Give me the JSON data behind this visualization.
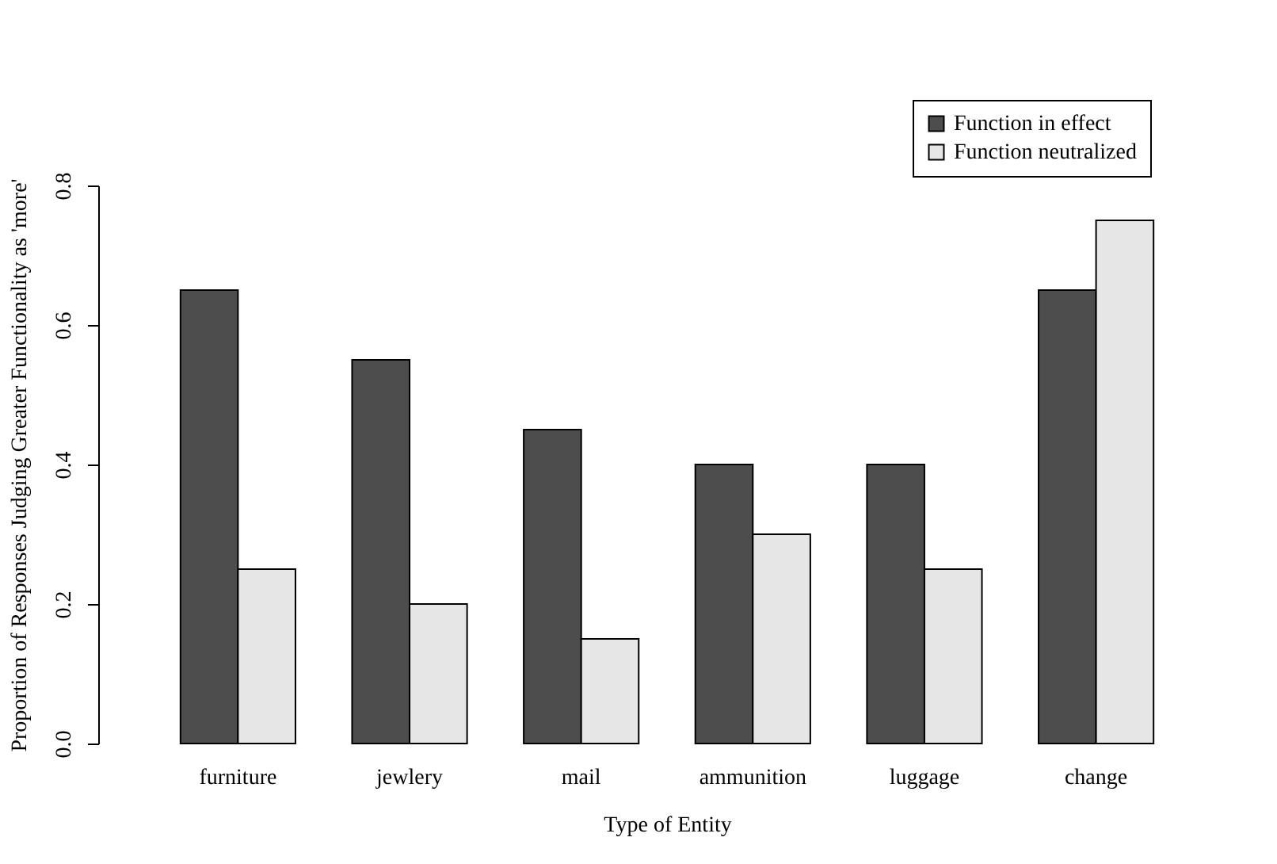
{
  "chart_data": {
    "type": "bar",
    "xlabel": "Type of Entity",
    "ylabel": "Proportion of Responses Judging Greater Functionality as 'more'",
    "categories": [
      "furniture",
      "jewlery",
      "mail",
      "ammunition",
      "luggage",
      "change"
    ],
    "series": [
      {
        "name": "Function in effect",
        "color": "#4d4d4d",
        "values": [
          0.65,
          0.55,
          0.45,
          0.4,
          0.4,
          0.65
        ]
      },
      {
        "name": "Function neutralized",
        "color": "#e6e6e6",
        "values": [
          0.25,
          0.2,
          0.15,
          0.3,
          0.25,
          0.75
        ]
      }
    ],
    "ylim": [
      0,
      0.8
    ],
    "yticks": [
      {
        "value": 0,
        "label": "0.0"
      },
      0.2,
      0.4,
      0.6,
      0.8
    ],
    "grid": false,
    "legend": "top right"
  }
}
